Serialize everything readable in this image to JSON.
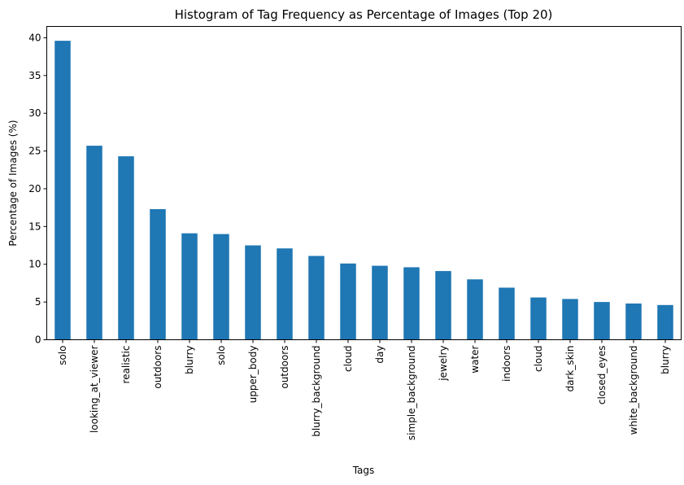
{
  "chart_data": {
    "type": "bar",
    "title": "Histogram of Tag Frequency as Percentage of Images (Top 20)",
    "xlabel": "Tags",
    "ylabel": "Percentage of Images (%)",
    "ylim": [
      0,
      41.5
    ],
    "yticks": [
      0,
      5,
      10,
      15,
      20,
      25,
      30,
      35,
      40
    ],
    "grid": false,
    "legend": "none",
    "bar_color": "#1f77b4",
    "categories": [
      "solo",
      "looking_at_viewer",
      "realistic",
      "outdoors",
      "blurry",
      "solo",
      "upper_body",
      "outdoors",
      "blurry_background",
      "cloud",
      "day",
      "simple_background",
      "jewelry",
      "water",
      "indoors",
      "cloud",
      "dark_skin",
      "closed_eyes",
      "white_background",
      "blurry"
    ],
    "values": [
      39.6,
      25.7,
      24.3,
      17.3,
      14.1,
      14.0,
      12.5,
      12.1,
      11.1,
      10.1,
      9.8,
      9.6,
      9.1,
      8.0,
      6.9,
      5.6,
      5.4,
      5.0,
      4.8,
      4.6
    ]
  }
}
